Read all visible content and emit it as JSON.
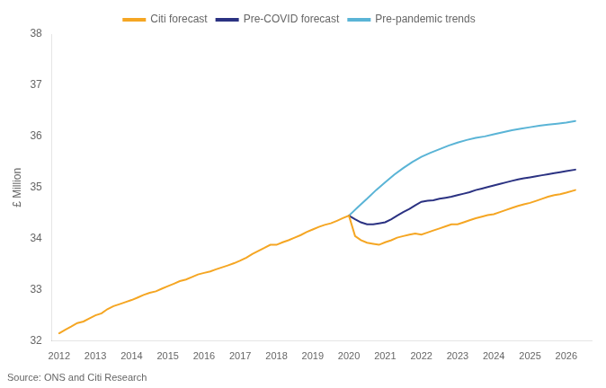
{
  "chart_data": {
    "type": "line",
    "ylabel": "£ Million",
    "annotation": "Source: ONS and Citi Research",
    "xlim": [
      2011.8,
      2026.7
    ],
    "xticks": [
      2012,
      2013,
      2014,
      2015,
      2016,
      2017,
      2018,
      2019,
      2020,
      2021,
      2022,
      2023,
      2024,
      2025,
      2026
    ],
    "ylim": [
      32,
      38
    ],
    "yticks": [
      32,
      33,
      34,
      35,
      36,
      37,
      38
    ],
    "grid": false,
    "legend": "top",
    "series": [
      {
        "name": "Citi forecast",
        "color": "#f5a623",
        "x": [
          2012.0,
          2012.17,
          2012.33,
          2012.5,
          2012.67,
          2012.83,
          2013.0,
          2013.17,
          2013.33,
          2013.5,
          2013.67,
          2013.83,
          2014.0,
          2014.17,
          2014.33,
          2014.5,
          2014.67,
          2014.83,
          2015.0,
          2015.17,
          2015.33,
          2015.5,
          2015.67,
          2015.83,
          2016.0,
          2016.17,
          2016.33,
          2016.5,
          2016.67,
          2016.83,
          2017.0,
          2017.17,
          2017.33,
          2017.5,
          2017.67,
          2017.83,
          2018.0,
          2018.17,
          2018.33,
          2018.5,
          2018.67,
          2018.83,
          2019.0,
          2019.17,
          2019.33,
          2019.5,
          2019.67,
          2019.83,
          2020.0,
          2020.17,
          2020.33,
          2020.5,
          2020.67,
          2020.83,
          2021.0,
          2021.17,
          2021.33,
          2021.5,
          2021.67,
          2021.83,
          2022.0,
          2022.17,
          2022.33,
          2022.5,
          2022.67,
          2022.83,
          2023.0,
          2023.17,
          2023.33,
          2023.5,
          2023.67,
          2023.83,
          2024.0,
          2024.17,
          2024.33,
          2024.5,
          2024.67,
          2024.83,
          2025.0,
          2025.17,
          2025.33,
          2025.5,
          2025.67,
          2025.83,
          2026.0,
          2026.25
        ],
        "values": [
          32.15,
          32.22,
          32.28,
          32.35,
          32.38,
          32.44,
          32.5,
          32.54,
          32.62,
          32.68,
          32.72,
          32.76,
          32.8,
          32.85,
          32.9,
          32.94,
          32.97,
          33.02,
          33.07,
          33.12,
          33.17,
          33.2,
          33.25,
          33.3,
          33.33,
          33.36,
          33.4,
          33.44,
          33.48,
          33.52,
          33.57,
          33.63,
          33.7,
          33.76,
          33.82,
          33.88,
          33.88,
          33.93,
          33.97,
          34.02,
          34.07,
          34.13,
          34.18,
          34.23,
          34.27,
          34.3,
          34.35,
          34.4,
          34.45,
          34.05,
          33.97,
          33.92,
          33.9,
          33.88,
          33.93,
          33.97,
          34.02,
          34.05,
          34.08,
          34.1,
          34.08,
          34.12,
          34.16,
          34.2,
          34.24,
          34.28,
          34.28,
          34.32,
          34.36,
          34.4,
          34.43,
          34.46,
          34.48,
          34.52,
          34.56,
          34.6,
          34.64,
          34.67,
          34.7,
          34.74,
          34.78,
          34.82,
          34.85,
          34.87,
          34.9,
          34.95
        ]
      },
      {
        "name": "Pre-COVID forecast",
        "color": "#2b3282",
        "x": [
          2020.0,
          2020.17,
          2020.33,
          2020.5,
          2020.67,
          2020.83,
          2021.0,
          2021.17,
          2021.33,
          2021.5,
          2021.67,
          2021.83,
          2022.0,
          2022.17,
          2022.33,
          2022.5,
          2022.67,
          2022.83,
          2023.0,
          2023.17,
          2023.33,
          2023.5,
          2023.67,
          2023.83,
          2024.0,
          2024.17,
          2024.33,
          2024.5,
          2024.67,
          2024.83,
          2025.0,
          2025.17,
          2025.33,
          2025.5,
          2025.67,
          2025.83,
          2026.0,
          2026.25
        ],
        "values": [
          34.45,
          34.38,
          34.32,
          34.28,
          34.28,
          34.3,
          34.32,
          34.38,
          34.45,
          34.52,
          34.58,
          34.65,
          34.72,
          34.74,
          34.75,
          34.78,
          34.8,
          34.82,
          34.85,
          34.88,
          34.91,
          34.95,
          34.98,
          35.01,
          35.04,
          35.07,
          35.1,
          35.13,
          35.16,
          35.18,
          35.2,
          35.22,
          35.24,
          35.26,
          35.28,
          35.3,
          35.32,
          35.35
        ]
      },
      {
        "name": "Pre-pandemic trends",
        "color": "#5ab4d6",
        "x": [
          2020.0,
          2020.25,
          2020.5,
          2020.75,
          2021.0,
          2021.25,
          2021.5,
          2021.75,
          2022.0,
          2022.25,
          2022.5,
          2022.75,
          2023.0,
          2023.25,
          2023.5,
          2023.75,
          2024.0,
          2024.25,
          2024.5,
          2024.75,
          2025.0,
          2025.25,
          2025.5,
          2025.75,
          2026.0,
          2026.25
        ],
        "values": [
          34.45,
          34.62,
          34.78,
          34.95,
          35.1,
          35.25,
          35.38,
          35.5,
          35.6,
          35.68,
          35.75,
          35.82,
          35.88,
          35.93,
          35.97,
          36.0,
          36.04,
          36.08,
          36.12,
          36.15,
          36.18,
          36.21,
          36.23,
          36.25,
          36.27,
          36.3
        ]
      }
    ]
  }
}
